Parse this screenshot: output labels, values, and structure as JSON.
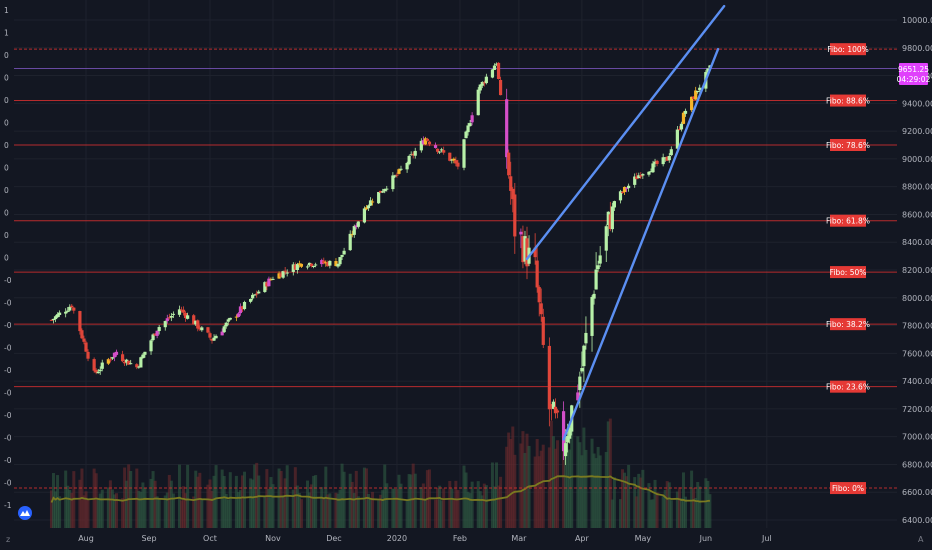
{
  "chart_data": {
    "type": "candlestick",
    "title": "",
    "xlabel": "",
    "ylabel": "",
    "ylim": [
      6300,
      10100
    ],
    "y_ticks": [
      6400,
      6600,
      6800,
      7000,
      7200,
      7400,
      7600,
      7800,
      8000,
      8200,
      8400,
      8600,
      8800,
      9000,
      9200,
      9400,
      9600,
      9800,
      10000
    ],
    "y_tick_labels": [
      "6400.00",
      "6600.00",
      "6800.00",
      "7000.00",
      "7200.00",
      "7400.00",
      "7600.00",
      "7800.00",
      "8000.00",
      "8200.00",
      "8400.00",
      "8600.00",
      "8800.00",
      "9000.00",
      "9200.00",
      "9400.00",
      "9600.00",
      "9800.00",
      "10000.00"
    ],
    "x_tick_labels": [
      "Aug",
      "Sep",
      "Oct",
      "Nov",
      "Dec",
      "2020",
      "Feb",
      "Mar",
      "Apr",
      "May",
      "Jun",
      "Jul"
    ],
    "x_tick_dates": [
      "2019-08-01",
      "2019-09-01",
      "2019-10-01",
      "2019-11-01",
      "2019-12-01",
      "2020-01-01",
      "2020-02-01",
      "2020-03-01",
      "2020-04-01",
      "2020-05-01",
      "2020-06-01",
      "2020-07-01"
    ],
    "left_axis_labels": [
      "1",
      "1",
      "0",
      "0",
      "0",
      "0",
      "0",
      "0",
      "0",
      "0",
      "0",
      "0",
      "-0",
      "-0",
      "-0",
      "-0",
      "-0",
      "-0",
      "-0",
      "-0",
      "-0",
      "-0",
      "-1"
    ],
    "price_label": "9651.25",
    "countdown_label": "04:29:02",
    "fibo_levels": [
      {
        "label": "Fibo:  100%",
        "value": 9790
      },
      {
        "label": "Fibo: 88.6%",
        "value": 9420
      },
      {
        "label": "Fibo: 78.6%",
        "value": 9100
      },
      {
        "label": "Fibo: 61.8%",
        "value": 8555
      },
      {
        "label": "Fibo:   50%",
        "value": 8185
      },
      {
        "label": "Fibo: 38.2%",
        "value": 7810
      },
      {
        "label": "Fibo: 23.6%",
        "value": 7360
      },
      {
        "label": "Fibo:    0%",
        "value": 6630
      }
    ],
    "current_price_value": 9651.25,
    "wedge_lines": [
      {
        "from": [
          "2020-03-05",
          8280
        ],
        "to": [
          "2020-06-10",
          10100
        ]
      },
      {
        "from": [
          "2020-03-23",
          6980
        ],
        "to": [
          "2020-06-07",
          9790
        ]
      }
    ],
    "candles_anchor_points": [
      [
        "2019-07-15",
        7840
      ],
      [
        "2019-07-25",
        7950
      ],
      [
        "2019-08-05",
        7450
      ],
      [
        "2019-08-15",
        7600
      ],
      [
        "2019-08-26",
        7500
      ],
      [
        "2019-09-05",
        7780
      ],
      [
        "2019-09-16",
        7920
      ],
      [
        "2019-10-02",
        7700
      ],
      [
        "2019-10-15",
        7900
      ],
      [
        "2019-11-01",
        8150
      ],
      [
        "2019-11-15",
        8250
      ],
      [
        "2019-12-03",
        8250
      ],
      [
        "2019-12-16",
        8650
      ],
      [
        "2020-01-02",
        8900
      ],
      [
        "2020-01-15",
        9150
      ],
      [
        "2020-01-31",
        8950
      ],
      [
        "2020-02-10",
        9500
      ],
      [
        "2020-02-19",
        9700
      ],
      [
        "2020-02-28",
        8500
      ],
      [
        "2020-03-09",
        8200
      ],
      [
        "2020-03-16",
        7200
      ],
      [
        "2020-03-23",
        6950
      ],
      [
        "2020-04-01",
        7500
      ],
      [
        "2020-04-08",
        8200
      ],
      [
        "2020-04-17",
        8700
      ],
      [
        "2020-04-30",
        8900
      ],
      [
        "2020-05-13",
        9000
      ],
      [
        "2020-05-22",
        9350
      ],
      [
        "2020-06-03",
        9650
      ]
    ],
    "volume_ma_color": "#7a7a20",
    "colors": {
      "up": "#b7f0a8",
      "down": "#e0463a",
      "pink": "#d44fc8",
      "orange": "#f5b52a",
      "fibo": "#d32f2f",
      "wedge": "#5b8ff2",
      "price_tag": "#e040fb"
    }
  }
}
